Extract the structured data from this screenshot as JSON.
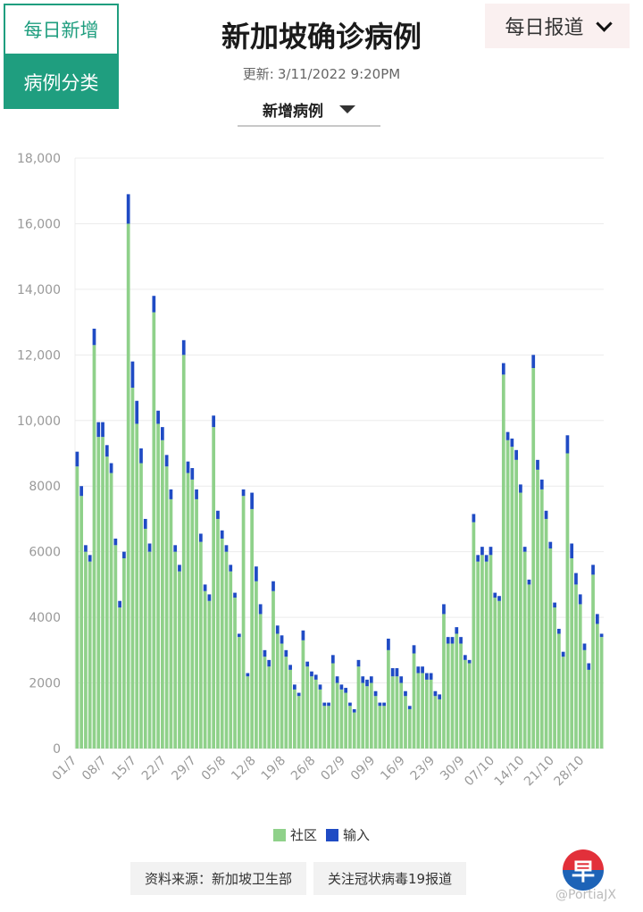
{
  "tabs": [
    {
      "label": "每日新增",
      "active": true
    },
    {
      "label": "病例分类",
      "active": false
    }
  ],
  "title": "新加坡确诊病例",
  "update_label": "更新:",
  "update_time": "3/11/2022 9:20PM",
  "metric_select": "新增病例",
  "report_dropdown": "每日报道",
  "sources": [
    "资料来源：新加坡卫生部",
    "关注冠状病毒19报道"
  ],
  "logo_text": "早",
  "watermark": "@PortiaJX",
  "colors": {
    "community": "#8fd18a",
    "imported": "#1f4bc4",
    "accent": "#1f9e7f"
  },
  "chart_data": {
    "type": "bar",
    "stacked": true,
    "ylim": [
      0,
      18000
    ],
    "y_ticks": [
      0,
      2000,
      4000,
      6000,
      8000,
      10000,
      12000,
      14000,
      16000,
      18000
    ],
    "y_tick_labels": [
      "0",
      "2000",
      "4000",
      "6000",
      "8000",
      "10,000",
      "12,000",
      "14,000",
      "16,000",
      "18,000"
    ],
    "x_tick_labels": [
      "01/7",
      "08/7",
      "15/7",
      "22/7",
      "29/7",
      "05/8",
      "12/8",
      "19/8",
      "26/8",
      "02/9",
      "09/9",
      "16/9",
      "23/9",
      "30/9",
      "07/10",
      "14/10",
      "21/10",
      "28/10"
    ],
    "legend_position": "bottom",
    "grid": true,
    "series": [
      {
        "name": "社区",
        "values": [
          8600,
          7700,
          6000,
          5700,
          12300,
          9500,
          9500,
          8900,
          8400,
          6200,
          4300,
          5800,
          16000,
          11000,
          9900,
          8700,
          6700,
          6000,
          13300,
          9900,
          9400,
          8600,
          7600,
          6000,
          5400,
          12000,
          8400,
          8200,
          7600,
          6300,
          4800,
          4500,
          9800,
          7000,
          6400,
          6000,
          5400,
          4600,
          3400,
          7700,
          2200,
          7300,
          5100,
          4100,
          2800,
          2500,
          4800,
          3500,
          3200,
          2800,
          2400,
          1800,
          1600,
          3300,
          2500,
          2200,
          2100,
          1800,
          1300,
          1300,
          2600,
          2000,
          1800,
          1700,
          1300,
          1100,
          2500,
          2000,
          1900,
          2000,
          1600,
          1300,
          1300,
          3000,
          2200,
          2200,
          2000,
          1600,
          1200,
          2900,
          2300,
          2300,
          2100,
          2100,
          1600,
          1500,
          4100,
          3200,
          3200,
          3500,
          3200,
          2700,
          2600,
          6900,
          5700,
          5900,
          5700,
          5900,
          4600,
          4500,
          11400,
          9400,
          9200,
          8800,
          7800,
          6000,
          5000,
          11600,
          8500,
          7900,
          7000,
          6100,
          4300,
          3500,
          2800,
          9000,
          5800,
          5000,
          4400,
          3000,
          2400,
          5300,
          3800,
          3400
        ]
      },
      {
        "name": "输入",
        "values": [
          450,
          300,
          200,
          200,
          500,
          450,
          450,
          350,
          300,
          200,
          200,
          200,
          900,
          800,
          700,
          450,
          300,
          250,
          500,
          400,
          400,
          350,
          300,
          200,
          200,
          450,
          350,
          350,
          300,
          250,
          200,
          200,
          350,
          250,
          250,
          200,
          200,
          150,
          100,
          200,
          100,
          500,
          450,
          300,
          200,
          200,
          300,
          250,
          250,
          200,
          150,
          150,
          100,
          300,
          150,
          150,
          150,
          150,
          100,
          100,
          250,
          200,
          150,
          150,
          100,
          100,
          200,
          200,
          200,
          200,
          150,
          100,
          100,
          350,
          250,
          250,
          200,
          150,
          100,
          250,
          200,
          200,
          200,
          200,
          150,
          150,
          300,
          200,
          200,
          200,
          200,
          150,
          100,
          250,
          200,
          250,
          200,
          250,
          150,
          150,
          350,
          250,
          250,
          300,
          250,
          150,
          150,
          400,
          300,
          300,
          250,
          200,
          150,
          150,
          150,
          550,
          450,
          350,
          300,
          200,
          200,
          300,
          300,
          100
        ]
      }
    ]
  }
}
